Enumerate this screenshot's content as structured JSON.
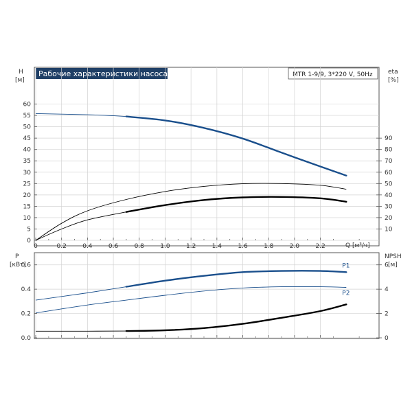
{
  "chart_data": [
    {
      "type": "line",
      "title": "Рабочие характеристики насоса",
      "model": "MTR 1-9/9, 3*220 V, 50Hz",
      "xlabel": "Q [м³/ч]",
      "xlim": [
        0,
        2.6
      ],
      "x_ticks": [
        "0",
        "0.2",
        "0.4",
        "0.6",
        "0.8",
        "1.0",
        "1.2",
        "1.4",
        "1.6",
        "1.8",
        "2.0",
        "2.2"
      ],
      "ylabel_left": [
        "H",
        "[м]"
      ],
      "ylim_left": [
        0,
        65
      ],
      "y_ticks_left": [
        "0",
        "5",
        "10",
        "15",
        "20",
        "25",
        "30",
        "35",
        "40",
        "45",
        "50",
        "55",
        "60"
      ],
      "ylabel_right": [
        "eta",
        "[%]"
      ],
      "ylim_right": [
        0,
        130
      ],
      "y_ticks_right": [
        "10",
        "20",
        "30",
        "40",
        "50",
        "60",
        "70",
        "80",
        "90"
      ],
      "grid": true,
      "series": [
        {
          "axis": "left",
          "color": "#1a4f8c",
          "x": [
            0,
            0.4,
            0.7,
            1.0,
            1.3,
            1.6,
            1.9,
            2.2,
            2.4
          ],
          "y": [
            55.8,
            55.3,
            54.5,
            52.8,
            49.5,
            44.8,
            38.6,
            32.5,
            28.5
          ],
          "highlight_from": 0.7
        },
        {
          "axis": "right",
          "color": "#000000",
          "x": [
            0,
            0.2,
            0.4,
            0.7,
            1.0,
            1.3,
            1.6,
            1.9,
            2.2,
            2.4
          ],
          "y": [
            0,
            15,
            26,
            36,
            43,
            47.5,
            49.8,
            50,
            48.5,
            45
          ]
        },
        {
          "axis": "right",
          "color": "#000000",
          "x": [
            0,
            0.2,
            0.4,
            0.7,
            1.0,
            1.3,
            1.6,
            1.9,
            2.2,
            2.4
          ],
          "y": [
            0,
            10,
            18,
            25,
            31,
            35.5,
            37.8,
            38.2,
            37,
            34
          ],
          "highlight_from": 0.7
        }
      ]
    },
    {
      "type": "line",
      "ylabel_left": [
        "P",
        "[кВт]"
      ],
      "ylim_left": [
        0,
        0.7
      ],
      "y_ticks_left": [
        "0.0",
        "0.2",
        "0.4",
        "0.6"
      ],
      "ylabel_right": [
        "NPSH",
        "[м]"
      ],
      "ylim_right": [
        0,
        7
      ],
      "y_ticks_right": [
        "0",
        "2",
        "4",
        "6"
      ],
      "grid": true,
      "series": [
        {
          "name": "P1",
          "axis": "left",
          "color": "#1a4f8c",
          "x": [
            0,
            0.4,
            0.7,
            1.0,
            1.3,
            1.6,
            1.9,
            2.2,
            2.4
          ],
          "y": [
            0.31,
            0.37,
            0.42,
            0.47,
            0.51,
            0.54,
            0.55,
            0.55,
            0.54
          ],
          "highlight_from": 0.7
        },
        {
          "name": "P2",
          "axis": "left",
          "color": "#1a4f8c",
          "x": [
            0,
            0.4,
            0.7,
            1.0,
            1.3,
            1.6,
            1.9,
            2.2,
            2.4
          ],
          "y": [
            0.205,
            0.27,
            0.31,
            0.35,
            0.385,
            0.41,
            0.42,
            0.42,
            0.415
          ]
        },
        {
          "axis": "right",
          "color": "#000000",
          "x": [
            0,
            0.35,
            0.7,
            1.0,
            1.3,
            1.6,
            1.9,
            2.2,
            2.4
          ],
          "y": [
            0.55,
            0.55,
            0.56,
            0.62,
            0.8,
            1.15,
            1.65,
            2.2,
            2.75
          ],
          "highlight_from": 0.7
        }
      ]
    }
  ]
}
